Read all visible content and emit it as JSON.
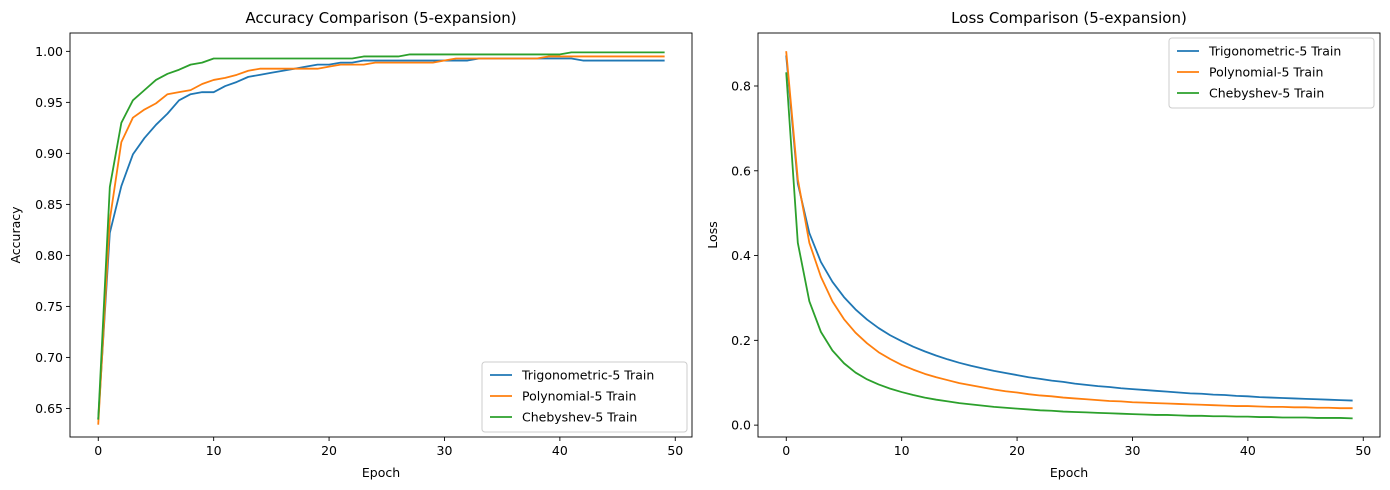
{
  "chart_data": [
    {
      "type": "line",
      "title": "Accuracy Comparison (5-expansion)",
      "xlabel": "Epoch",
      "ylabel": "Accuracy",
      "xlim": [
        -2.45,
        51.45
      ],
      "ylim": [
        0.622,
        1.018
      ],
      "xticks": [
        0,
        10,
        20,
        30,
        40,
        50
      ],
      "yticks": [
        0.65,
        0.7,
        0.75,
        0.8,
        0.85,
        0.9,
        0.95,
        1.0
      ],
      "ytick_labels": [
        "0.65",
        "0.70",
        "0.75",
        "0.80",
        "0.85",
        "0.90",
        "0.95",
        "1.00"
      ],
      "grid": false,
      "legend_position": "lower-right",
      "x": [
        0,
        1,
        2,
        3,
        4,
        5,
        6,
        7,
        8,
        9,
        10,
        11,
        12,
        13,
        14,
        15,
        16,
        17,
        18,
        19,
        20,
        21,
        22,
        23,
        24,
        25,
        26,
        27,
        28,
        29,
        30,
        31,
        32,
        33,
        34,
        35,
        36,
        37,
        38,
        39,
        40,
        41,
        42,
        43,
        44,
        45,
        46,
        47,
        48,
        49
      ],
      "series": [
        {
          "name": "Trigonometric-5 Train",
          "color": "#1f77b4",
          "values": [
            0.64,
            0.822,
            0.868,
            0.899,
            0.915,
            0.928,
            0.939,
            0.952,
            0.958,
            0.96,
            0.96,
            0.966,
            0.97,
            0.975,
            0.977,
            0.979,
            0.981,
            0.983,
            0.985,
            0.987,
            0.987,
            0.989,
            0.989,
            0.991,
            0.991,
            0.991,
            0.991,
            0.991,
            0.991,
            0.991,
            0.991,
            0.991,
            0.991,
            0.993,
            0.993,
            0.993,
            0.993,
            0.993,
            0.993,
            0.993,
            0.993,
            0.993,
            0.991,
            0.991,
            0.991,
            0.991,
            0.991,
            0.991,
            0.991,
            0.991
          ]
        },
        {
          "name": "Polynomial-5 Train",
          "color": "#ff7f0e",
          "values": [
            0.635,
            0.835,
            0.911,
            0.935,
            0.943,
            0.949,
            0.958,
            0.96,
            0.962,
            0.968,
            0.972,
            0.974,
            0.977,
            0.981,
            0.983,
            0.983,
            0.983,
            0.983,
            0.983,
            0.983,
            0.985,
            0.987,
            0.987,
            0.987,
            0.989,
            0.989,
            0.989,
            0.989,
            0.989,
            0.989,
            0.991,
            0.993,
            0.993,
            0.993,
            0.993,
            0.993,
            0.993,
            0.993,
            0.993,
            0.995,
            0.995,
            0.995,
            0.995,
            0.995,
            0.995,
            0.995,
            0.995,
            0.995,
            0.995,
            0.995
          ]
        },
        {
          "name": "Chebyshev-5 Train",
          "color": "#2ca02c",
          "values": [
            0.64,
            0.867,
            0.93,
            0.952,
            0.962,
            0.972,
            0.978,
            0.982,
            0.987,
            0.989,
            0.993,
            0.993,
            0.993,
            0.993,
            0.993,
            0.993,
            0.993,
            0.993,
            0.993,
            0.993,
            0.993,
            0.993,
            0.993,
            0.995,
            0.995,
            0.995,
            0.995,
            0.997,
            0.997,
            0.997,
            0.997,
            0.997,
            0.997,
            0.997,
            0.997,
            0.997,
            0.997,
            0.997,
            0.997,
            0.997,
            0.997,
            0.999,
            0.999,
            0.999,
            0.999,
            0.999,
            0.999,
            0.999,
            0.999,
            0.999
          ]
        }
      ]
    },
    {
      "type": "line",
      "title": "Loss Comparison (5-expansion)",
      "xlabel": "Epoch",
      "ylabel": "Loss",
      "xlim": [
        -2.45,
        51.45
      ],
      "ylim": [
        -0.028,
        0.925
      ],
      "xticks": [
        0,
        10,
        20,
        30,
        40,
        50
      ],
      "yticks": [
        0.0,
        0.2,
        0.4,
        0.6,
        0.8
      ],
      "ytick_labels": [
        "0.0",
        "0.2",
        "0.4",
        "0.6",
        "0.8"
      ],
      "grid": false,
      "legend_position": "upper-right",
      "x": [
        0,
        1,
        2,
        3,
        4,
        5,
        6,
        7,
        8,
        9,
        10,
        11,
        12,
        13,
        14,
        15,
        16,
        17,
        18,
        19,
        20,
        21,
        22,
        23,
        24,
        25,
        26,
        27,
        28,
        29,
        30,
        31,
        32,
        33,
        34,
        35,
        36,
        37,
        38,
        39,
        40,
        41,
        42,
        43,
        44,
        45,
        46,
        47,
        48,
        49
      ],
      "series": [
        {
          "name": "Trigonometric-5 Train",
          "color": "#1f77b4",
          "values": [
            0.87,
            0.57,
            0.453,
            0.385,
            0.338,
            0.302,
            0.273,
            0.249,
            0.229,
            0.212,
            0.198,
            0.185,
            0.174,
            0.164,
            0.155,
            0.147,
            0.14,
            0.134,
            0.128,
            0.123,
            0.118,
            0.113,
            0.109,
            0.105,
            0.102,
            0.098,
            0.095,
            0.092,
            0.09,
            0.087,
            0.085,
            0.083,
            0.081,
            0.079,
            0.077,
            0.075,
            0.074,
            0.072,
            0.071,
            0.069,
            0.068,
            0.066,
            0.065,
            0.064,
            0.063,
            0.062,
            0.061,
            0.06,
            0.059,
            0.058
          ]
        },
        {
          "name": "Polynomial-5 Train",
          "color": "#ff7f0e",
          "values": [
            0.88,
            0.58,
            0.43,
            0.35,
            0.292,
            0.25,
            0.218,
            0.193,
            0.172,
            0.156,
            0.142,
            0.131,
            0.121,
            0.113,
            0.106,
            0.099,
            0.094,
            0.089,
            0.084,
            0.08,
            0.077,
            0.073,
            0.07,
            0.068,
            0.065,
            0.063,
            0.061,
            0.059,
            0.057,
            0.056,
            0.054,
            0.053,
            0.052,
            0.051,
            0.05,
            0.049,
            0.048,
            0.047,
            0.046,
            0.045,
            0.045,
            0.044,
            0.043,
            0.043,
            0.042,
            0.042,
            0.041,
            0.041,
            0.04,
            0.04
          ]
        },
        {
          "name": "Chebyshev-5 Train",
          "color": "#2ca02c",
          "values": [
            0.83,
            0.43,
            0.292,
            0.22,
            0.176,
            0.146,
            0.124,
            0.108,
            0.096,
            0.086,
            0.078,
            0.071,
            0.065,
            0.06,
            0.056,
            0.052,
            0.049,
            0.046,
            0.043,
            0.041,
            0.039,
            0.037,
            0.035,
            0.034,
            0.032,
            0.031,
            0.03,
            0.029,
            0.028,
            0.027,
            0.026,
            0.025,
            0.024,
            0.024,
            0.023,
            0.022,
            0.022,
            0.021,
            0.021,
            0.02,
            0.02,
            0.019,
            0.019,
            0.018,
            0.018,
            0.018,
            0.017,
            0.017,
            0.017,
            0.016
          ]
        }
      ]
    }
  ]
}
